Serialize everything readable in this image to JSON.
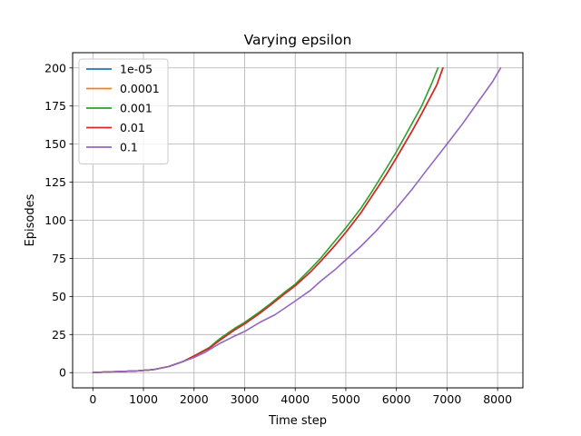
{
  "chart_data": {
    "type": "line",
    "title": "Varying epsilon",
    "xlabel": "Time step",
    "ylabel": "Episodes",
    "xlim": [
      -400,
      8500
    ],
    "ylim": [
      -10,
      210
    ],
    "xticks": [
      0,
      1000,
      2000,
      3000,
      4000,
      5000,
      6000,
      7000,
      8000
    ],
    "yticks": [
      0,
      25,
      50,
      75,
      100,
      125,
      150,
      175,
      200
    ],
    "grid": true,
    "legend_position": "top-left",
    "series": [
      {
        "name": "1e-05",
        "color": "#1f77b4",
        "points": [
          [
            0,
            0
          ],
          [
            300,
            0.5
          ],
          [
            600,
            0.8
          ],
          [
            900,
            1.2
          ],
          [
            1200,
            2
          ],
          [
            1500,
            4
          ],
          [
            1800,
            7.5
          ],
          [
            2000,
            11
          ],
          [
            2300,
            16
          ],
          [
            2500,
            21
          ],
          [
            2800,
            28
          ],
          [
            3000,
            32
          ],
          [
            3300,
            39
          ],
          [
            3500,
            44
          ],
          [
            3800,
            52
          ],
          [
            4000,
            57
          ],
          [
            4300,
            66
          ],
          [
            4500,
            73
          ],
          [
            4800,
            84
          ],
          [
            5000,
            92
          ],
          [
            5300,
            105
          ],
          [
            5500,
            115
          ],
          [
            5800,
            130
          ],
          [
            6000,
            141
          ],
          [
            6300,
            158
          ],
          [
            6500,
            170
          ],
          [
            6800,
            189
          ],
          [
            6920,
            200
          ]
        ]
      },
      {
        "name": "0.0001",
        "color": "#ff7f0e",
        "points": [
          [
            0,
            0
          ],
          [
            300,
            0.5
          ],
          [
            600,
            0.8
          ],
          [
            900,
            1.2
          ],
          [
            1200,
            2
          ],
          [
            1500,
            4
          ],
          [
            1800,
            7.5
          ],
          [
            2000,
            11
          ],
          [
            2300,
            16
          ],
          [
            2500,
            21
          ],
          [
            2800,
            28
          ],
          [
            3000,
            32
          ],
          [
            3300,
            39
          ],
          [
            3500,
            44
          ],
          [
            3800,
            52
          ],
          [
            4000,
            57
          ],
          [
            4300,
            66
          ],
          [
            4500,
            73
          ],
          [
            4800,
            84
          ],
          [
            5000,
            92
          ],
          [
            5300,
            105
          ],
          [
            5500,
            115
          ],
          [
            5800,
            130
          ],
          [
            6000,
            141
          ],
          [
            6300,
            158
          ],
          [
            6500,
            170
          ],
          [
            6800,
            189
          ],
          [
            6920,
            200
          ]
        ]
      },
      {
        "name": "0.001",
        "color": "#2ca02c",
        "points": [
          [
            0,
            0
          ],
          [
            300,
            0.5
          ],
          [
            600,
            0.8
          ],
          [
            900,
            1.2
          ],
          [
            1200,
            2
          ],
          [
            1500,
            4
          ],
          [
            1800,
            7.5
          ],
          [
            2000,
            11
          ],
          [
            2300,
            16.5
          ],
          [
            2500,
            22
          ],
          [
            2800,
            29
          ],
          [
            3000,
            33
          ],
          [
            3300,
            40
          ],
          [
            3500,
            45
          ],
          [
            3800,
            53
          ],
          [
            4000,
            58
          ],
          [
            4300,
            68
          ],
          [
            4500,
            75
          ],
          [
            4800,
            87
          ],
          [
            5000,
            95
          ],
          [
            5300,
            108
          ],
          [
            5500,
            118
          ],
          [
            5800,
            134
          ],
          [
            6000,
            145
          ],
          [
            6300,
            163
          ],
          [
            6500,
            175
          ],
          [
            6700,
            190
          ],
          [
            6820,
            200
          ]
        ]
      },
      {
        "name": "0.01",
        "color": "#d62728",
        "points": [
          [
            0,
            0
          ],
          [
            300,
            0.5
          ],
          [
            600,
            0.8
          ],
          [
            900,
            1.2
          ],
          [
            1200,
            2
          ],
          [
            1500,
            4
          ],
          [
            1800,
            7.5
          ],
          [
            2000,
            11
          ],
          [
            2300,
            16
          ],
          [
            2500,
            21
          ],
          [
            2800,
            28
          ],
          [
            3000,
            32
          ],
          [
            3300,
            39
          ],
          [
            3500,
            44
          ],
          [
            3800,
            52
          ],
          [
            4000,
            57
          ],
          [
            4300,
            66
          ],
          [
            4500,
            73
          ],
          [
            4800,
            84
          ],
          [
            5000,
            92
          ],
          [
            5300,
            105
          ],
          [
            5500,
            115
          ],
          [
            5800,
            130
          ],
          [
            6000,
            141
          ],
          [
            6300,
            158
          ],
          [
            6500,
            170
          ],
          [
            6800,
            189
          ],
          [
            6920,
            200
          ]
        ]
      },
      {
        "name": "0.1",
        "color": "#9467bd",
        "points": [
          [
            0,
            0
          ],
          [
            300,
            0.5
          ],
          [
            600,
            0.8
          ],
          [
            900,
            1.2
          ],
          [
            1200,
            2
          ],
          [
            1500,
            4
          ],
          [
            1800,
            7.5
          ],
          [
            2000,
            10
          ],
          [
            2200,
            13
          ],
          [
            2500,
            19
          ],
          [
            2800,
            24
          ],
          [
            3000,
            27
          ],
          [
            3300,
            33
          ],
          [
            3600,
            38
          ],
          [
            4000,
            47
          ],
          [
            4300,
            54
          ],
          [
            4500,
            60
          ],
          [
            4800,
            68
          ],
          [
            5000,
            74
          ],
          [
            5300,
            83
          ],
          [
            5600,
            93
          ],
          [
            6000,
            108
          ],
          [
            6300,
            120
          ],
          [
            6600,
            133
          ],
          [
            7000,
            150
          ],
          [
            7300,
            163
          ],
          [
            7600,
            177
          ],
          [
            7900,
            191
          ],
          [
            8060,
            200
          ]
        ]
      }
    ]
  }
}
